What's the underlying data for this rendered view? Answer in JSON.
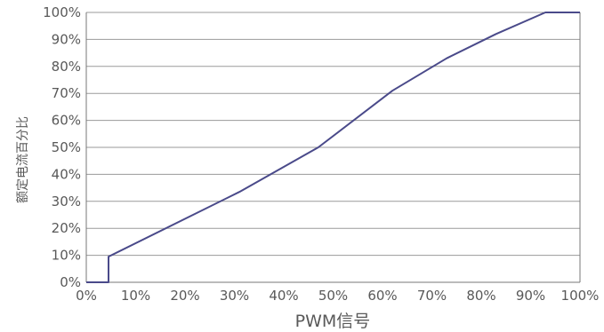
{
  "chart_data": {
    "type": "line",
    "xlabel": "PWM信号",
    "ylabel": "额定电流百分比",
    "xlim": [
      0,
      100
    ],
    "ylim": [
      0,
      100
    ],
    "x_ticks": [
      "0%",
      "10%",
      "20%",
      "30%",
      "40%",
      "50%",
      "60%",
      "70%",
      "80%",
      "90%",
      "100%"
    ],
    "y_ticks": [
      "0%",
      "10%",
      "20%",
      "30%",
      "40%",
      "50%",
      "60%",
      "70%",
      "80%",
      "90%",
      "100%"
    ],
    "grid": "horizontal",
    "series": [
      {
        "color": "#4a4a8a",
        "points": [
          {
            "x": 0,
            "y": 0
          },
          {
            "x": 4.5,
            "y": 0
          },
          {
            "x": 4.5,
            "y": 9.5
          },
          {
            "x": 31,
            "y": 33.5
          },
          {
            "x": 47,
            "y": 50
          },
          {
            "x": 62,
            "y": 71
          },
          {
            "x": 73,
            "y": 83
          },
          {
            "x": 83,
            "y": 92
          },
          {
            "x": 93,
            "y": 100
          },
          {
            "x": 100,
            "y": 100
          }
        ]
      }
    ]
  }
}
